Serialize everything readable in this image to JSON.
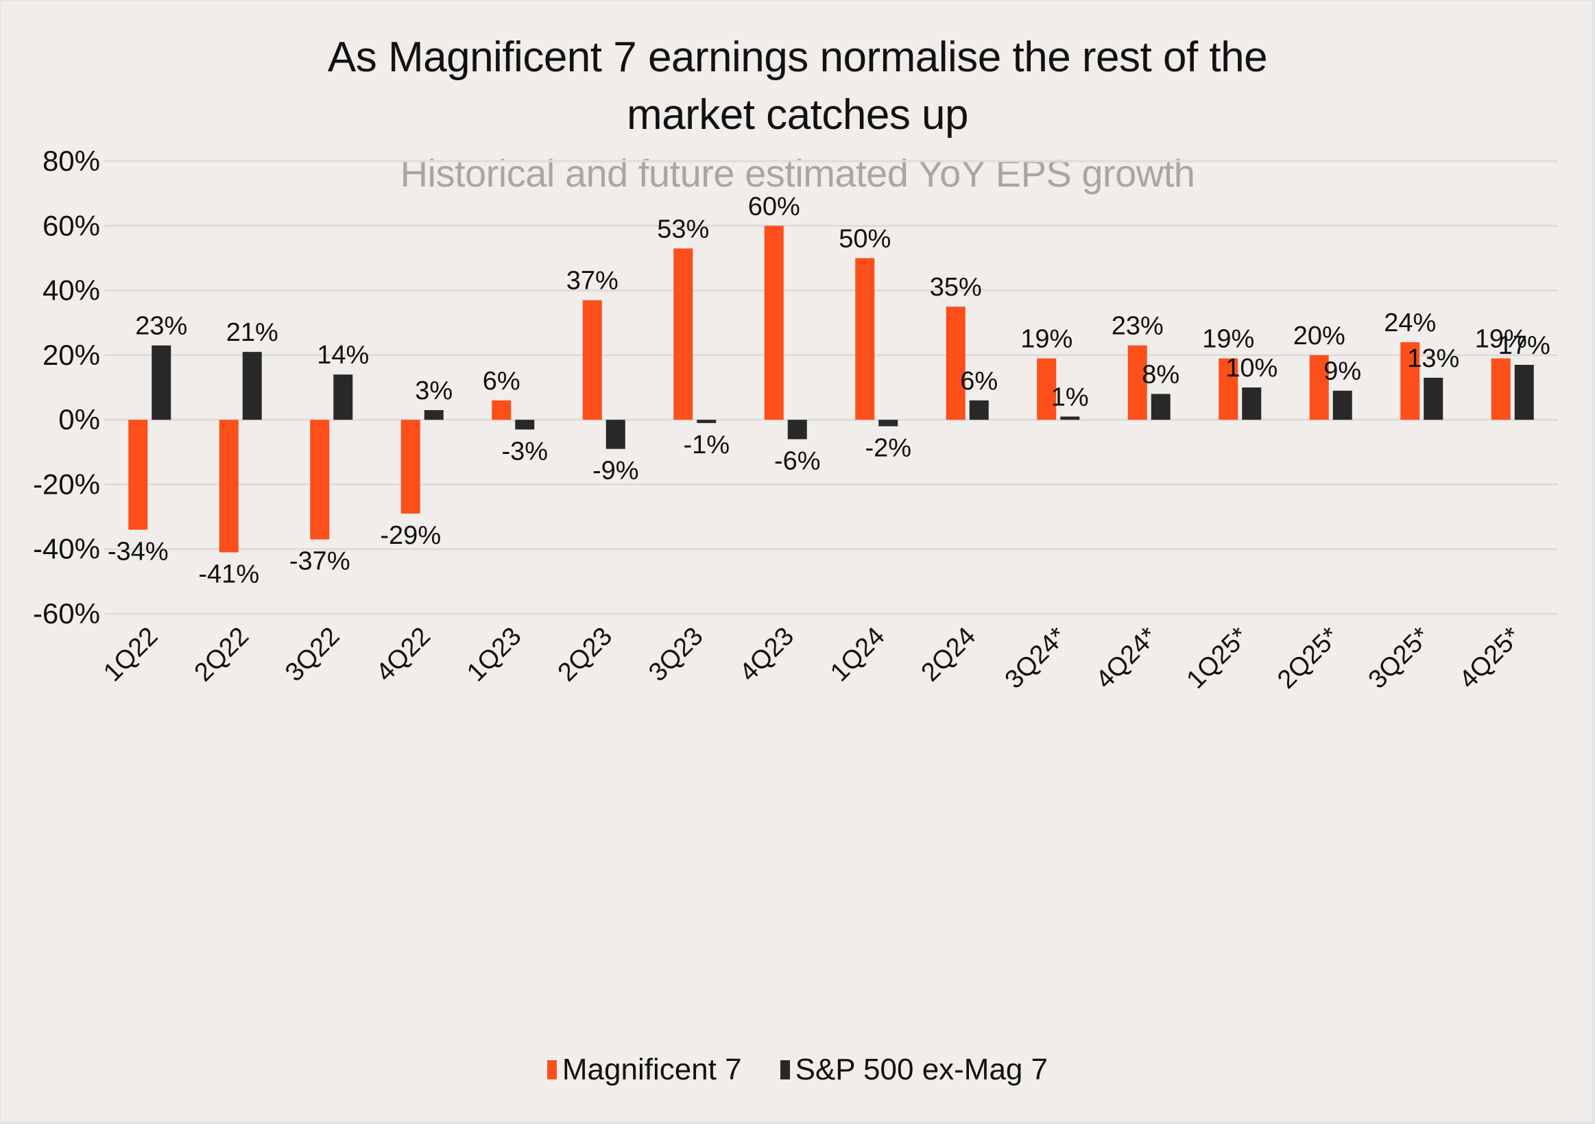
{
  "chart_data": {
    "type": "bar",
    "title": "As Magnificent 7 earnings normalise the rest of the market catches up",
    "title_lines": [
      "As Magnificent 7 earnings normalise the rest of the",
      "market catches up"
    ],
    "subtitle": "Historical and future estimated YoY EPS growth",
    "xlabel": "",
    "ylabel": "",
    "ylim": [
      -60,
      80
    ],
    "yticks": [
      80,
      60,
      40,
      20,
      0,
      -20,
      -40,
      -60
    ],
    "ytick_labels": [
      "80%",
      "60%",
      "40%",
      "20%",
      "0%",
      "-20%",
      "-40%",
      "-60%"
    ],
    "grid": true,
    "legend_position": "bottom",
    "categories": [
      "1Q22",
      "2Q22",
      "3Q22",
      "4Q22",
      "1Q23",
      "2Q23",
      "3Q23",
      "4Q23",
      "1Q24",
      "2Q24",
      "3Q24*",
      "4Q24*",
      "1Q25*",
      "2Q25*",
      "3Q25*",
      "4Q25*"
    ],
    "series": [
      {
        "name": "Magnificent 7",
        "color": "#fc4f1a",
        "values": [
          -34,
          -41,
          -37,
          -29,
          6,
          37,
          53,
          60,
          50,
          35,
          19,
          23,
          19,
          20,
          24,
          19
        ],
        "labels": [
          "-34%",
          "-41%",
          "-37%",
          "-29%",
          "6%",
          "37%",
          "53%",
          "60%",
          "50%",
          "35%",
          "19%",
          "23%",
          "19%",
          "20%",
          "24%",
          "19%"
        ]
      },
      {
        "name": "S&P 500 ex-Mag 7",
        "color": "#282828",
        "values": [
          23,
          21,
          14,
          3,
          -3,
          -9,
          -1,
          -6,
          -2,
          6,
          1,
          8,
          10,
          9,
          13,
          17
        ],
        "labels": [
          "23%",
          "21%",
          "14%",
          "3%",
          "-3%",
          "-9%",
          "-1%",
          "-6%",
          "-2%",
          "6%",
          "1%",
          "8%",
          "10%",
          "9%",
          "13%",
          "17%"
        ]
      }
    ]
  },
  "colors": {
    "background": "#f0edea",
    "gridline": "#dedcdb",
    "subtitle": "#a8a6a4"
  }
}
